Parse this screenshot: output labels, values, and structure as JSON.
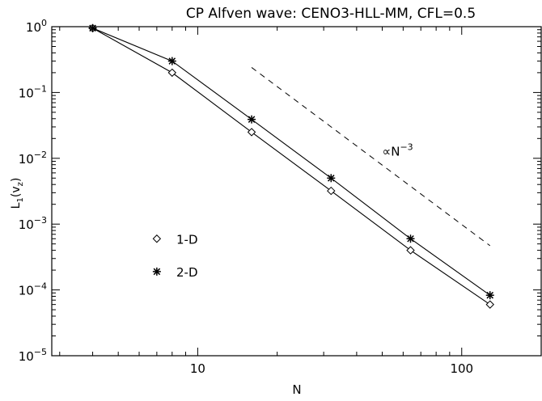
{
  "chart_data": {
    "type": "line",
    "title": "CP Alfven wave: CENO3-HLL-MM, CFL=0.5",
    "xlabel": "N",
    "ylabel": "L1(vz)",
    "ylabel_parts": {
      "L": "L",
      "sub1": "1",
      "open": "(v",
      "subz": "z",
      "close": ")"
    },
    "x_scale": "log",
    "y_scale": "log",
    "xlim": [
      2.8,
      200
    ],
    "ylim": [
      1e-05,
      1
    ],
    "x_major_ticks": [
      10,
      100
    ],
    "x_tick_labels": [
      "10",
      "100"
    ],
    "y_major_ticks": [
      {
        "value": 1,
        "base": "10",
        "exp": "0"
      },
      {
        "value": 0.1,
        "base": "10",
        "exp": "−1"
      },
      {
        "value": 0.01,
        "base": "10",
        "exp": "−2"
      },
      {
        "value": 0.001,
        "base": "10",
        "exp": "−3"
      },
      {
        "value": 0.0001,
        "base": "10",
        "exp": "−4"
      },
      {
        "value": 1e-05,
        "base": "10",
        "exp": "−5"
      }
    ],
    "series": [
      {
        "name": "1-D",
        "marker": "diamond",
        "x": [
          4,
          8,
          16,
          32,
          64,
          128
        ],
        "y": [
          0.95,
          0.2,
          0.025,
          0.0032,
          0.0004,
          6e-05
        ]
      },
      {
        "name": "2-D",
        "marker": "asterisk",
        "x": [
          4,
          8,
          16,
          32,
          64,
          128
        ],
        "y": [
          0.95,
          0.3,
          0.039,
          0.005,
          0.0006,
          8.3e-05
        ]
      }
    ],
    "reference_line": {
      "label_base": "∝N",
      "label_exp": "−3",
      "x": [
        16,
        128
      ],
      "y": [
        0.24,
        0.00047
      ]
    },
    "annotation_anchor": {
      "x": 50,
      "y": 0.011
    },
    "legend": [
      {
        "label": "1-D",
        "marker": "diamond",
        "y": 0.0006
      },
      {
        "label": "2-D",
        "marker": "asterisk",
        "y": 0.00019
      }
    ],
    "legend_marker_x": 7.0,
    "legend_text_x": 8.3,
    "grid": false,
    "colors": {
      "line": "#000000",
      "background": "#ffffff"
    }
  }
}
